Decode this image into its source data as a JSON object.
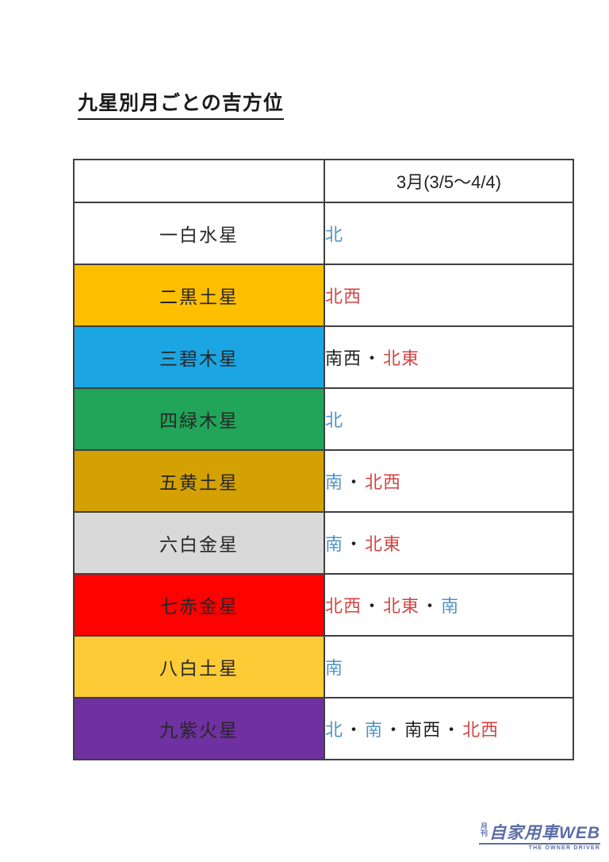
{
  "page": {
    "title": "九星別月ごとの吉方位"
  },
  "table": {
    "header": {
      "star_col": "",
      "month_col": "3月(3/5～4/4)"
    },
    "separator": "・",
    "rows": [
      {
        "star": "一白水星",
        "bg": "#FFFFFF",
        "directions": [
          {
            "text": "北",
            "color": "blue"
          }
        ]
      },
      {
        "star": "二黒土星",
        "bg": "#FEBF01",
        "directions": [
          {
            "text": "北西",
            "color": "red"
          }
        ]
      },
      {
        "star": "三碧木星",
        "bg": "#1BA6E3",
        "directions": [
          {
            "text": "南西",
            "color": "black"
          },
          {
            "text": "北東",
            "color": "red"
          }
        ]
      },
      {
        "star": "四緑木星",
        "bg": "#21A559",
        "directions": [
          {
            "text": "北",
            "color": "blue"
          }
        ]
      },
      {
        "star": "五黄土星",
        "bg": "#D3A101",
        "directions": [
          {
            "text": "南",
            "color": "blue"
          },
          {
            "text": "北西",
            "color": "red"
          }
        ]
      },
      {
        "star": "六白金星",
        "bg": "#D9D9D9",
        "directions": [
          {
            "text": "南",
            "color": "blue"
          },
          {
            "text": "北東",
            "color": "red"
          }
        ]
      },
      {
        "star": "七赤金星",
        "bg": "#FE0101",
        "directions": [
          {
            "text": "北西",
            "color": "red"
          },
          {
            "text": "北東",
            "color": "red"
          },
          {
            "text": "南",
            "color": "blue"
          }
        ]
      },
      {
        "star": "八白土星",
        "bg": "#FDCB35",
        "directions": [
          {
            "text": "南",
            "color": "blue"
          }
        ]
      },
      {
        "star": "九紫火星",
        "bg": "#7031A0",
        "directions": [
          {
            "text": "北",
            "color": "blue"
          },
          {
            "text": "南",
            "color": "blue"
          },
          {
            "text": "南西",
            "color": "black"
          },
          {
            "text": "北西",
            "color": "red"
          }
        ]
      }
    ]
  },
  "colors": {
    "direction_blue": "#5193C3",
    "direction_red": "#D04543",
    "direction_black": "#1F1F1F"
  },
  "logo": {
    "monthly": "月刊",
    "main": "自家用車WEB",
    "subtitle": "THE OWNER DRIVER",
    "color": "#5C6DA6"
  }
}
